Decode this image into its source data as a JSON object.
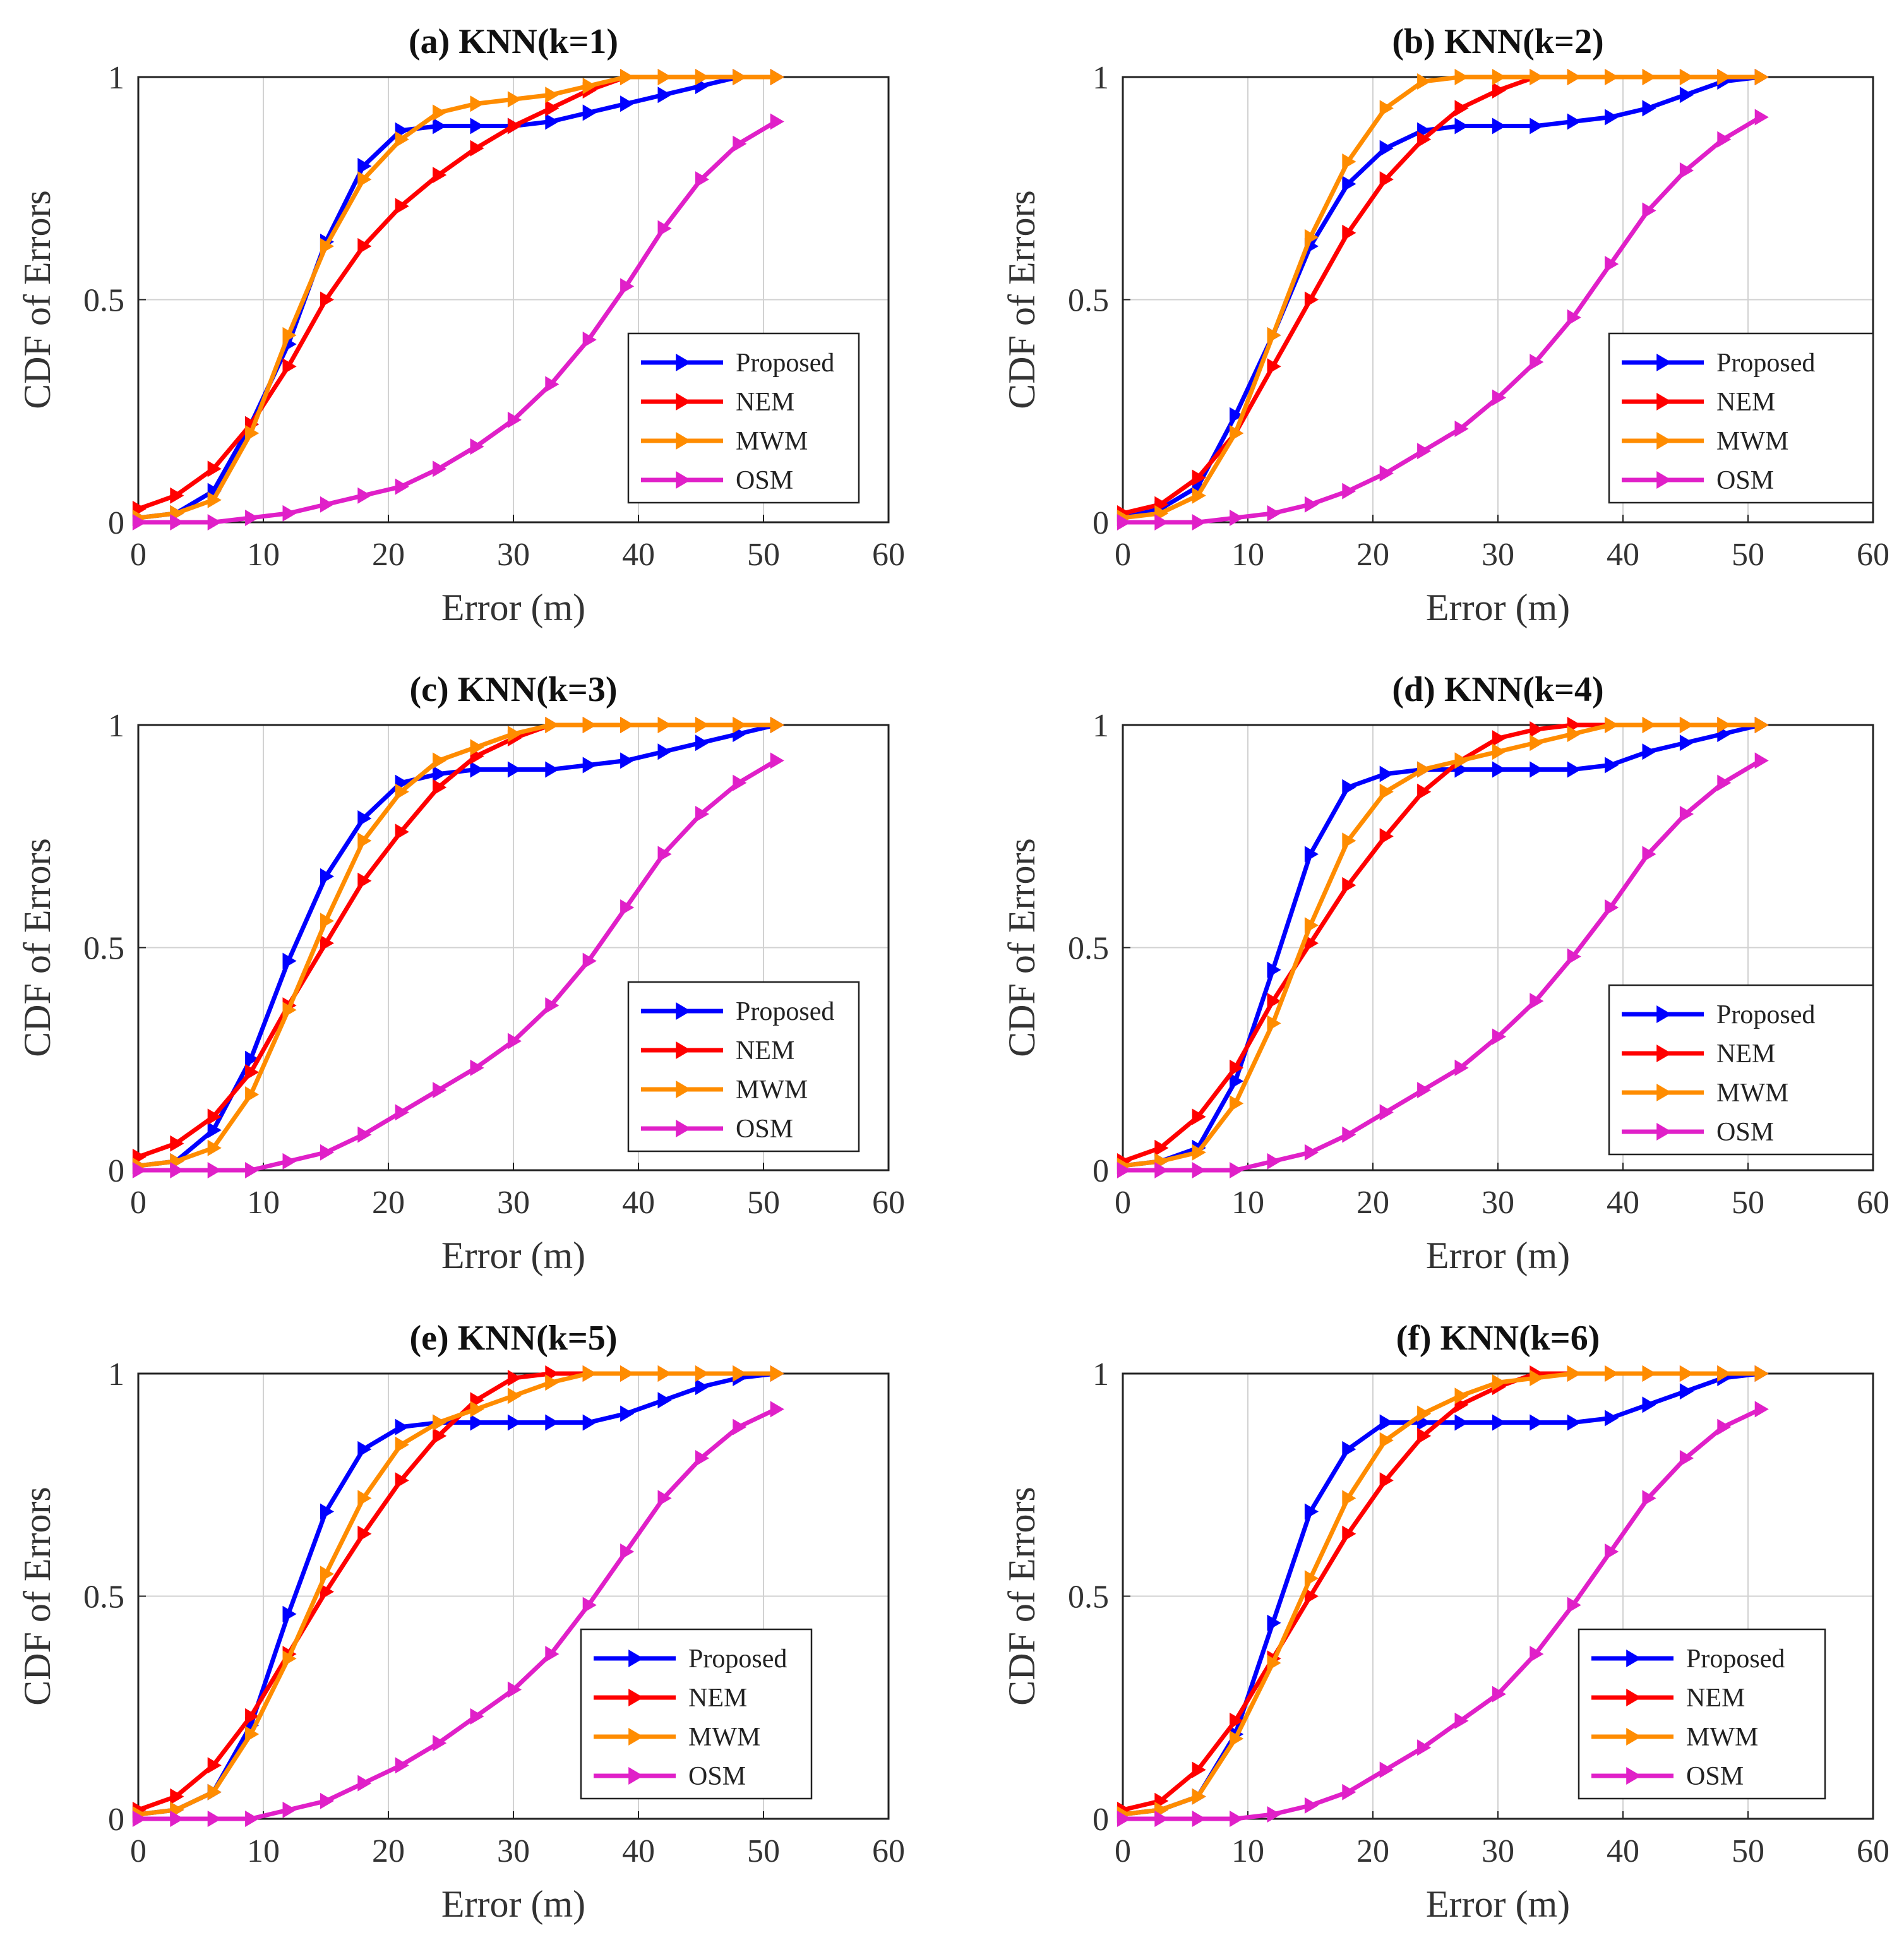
{
  "chart_data": [
    {
      "type": "line",
      "title": "(a) KNN(k=1)",
      "xlabel": "Error (m)",
      "ylabel": "CDF of Errors",
      "xlim": [
        0,
        60
      ],
      "ylim": [
        0,
        1
      ],
      "xticks": [
        "0",
        "10",
        "20",
        "30",
        "40",
        "50",
        "60"
      ],
      "yticks": [
        "0",
        "0.5",
        "1"
      ],
      "grid": true,
      "legend_position": "lower-right",
      "x": [
        0,
        3,
        6,
        9,
        12,
        15,
        18,
        21,
        24,
        27,
        30,
        33,
        36,
        39,
        42,
        45,
        48,
        51
      ],
      "series": [
        {
          "name": "Proposed",
          "color": "#0000ff",
          "values": [
            0.01,
            0.02,
            0.07,
            0.22,
            0.4,
            0.63,
            0.8,
            0.88,
            0.89,
            0.89,
            0.89,
            0.9,
            0.92,
            0.94,
            0.96,
            0.98,
            1.0,
            1.0
          ]
        },
        {
          "name": "NEM",
          "color": "#ff0000",
          "values": [
            0.03,
            0.06,
            0.12,
            0.22,
            0.35,
            0.5,
            0.62,
            0.71,
            0.78,
            0.84,
            0.89,
            0.93,
            0.97,
            1.0,
            1.0,
            1.0,
            1.0,
            1.0
          ]
        },
        {
          "name": "MWM",
          "color": "#ff8c00",
          "values": [
            0.01,
            0.02,
            0.05,
            0.2,
            0.42,
            0.62,
            0.77,
            0.86,
            0.92,
            0.94,
            0.95,
            0.96,
            0.98,
            1.0,
            1.0,
            1.0,
            1.0,
            1.0
          ]
        },
        {
          "name": "OSM",
          "color": "#e020c8",
          "values": [
            0.0,
            0.0,
            0.0,
            0.01,
            0.02,
            0.04,
            0.06,
            0.08,
            0.12,
            0.17,
            0.23,
            0.31,
            0.41,
            0.53,
            0.66,
            0.77,
            0.85,
            0.9
          ]
        }
      ]
    },
    {
      "type": "line",
      "title": "(b) KNN(k=2)",
      "xlabel": "Error (m)",
      "ylabel": "CDF of Errors",
      "xlim": [
        0,
        60
      ],
      "ylim": [
        0,
        1
      ],
      "xticks": [
        "0",
        "10",
        "20",
        "30",
        "40",
        "50",
        "60"
      ],
      "yticks": [
        "0",
        "0.5",
        "1"
      ],
      "grid": true,
      "legend_position": "lower-right",
      "x": [
        0,
        3,
        6,
        9,
        12,
        15,
        18,
        21,
        24,
        27,
        30,
        33,
        36,
        39,
        42,
        45,
        48,
        51
      ],
      "series": [
        {
          "name": "Proposed",
          "color": "#0000ff",
          "values": [
            0.01,
            0.03,
            0.08,
            0.24,
            0.42,
            0.62,
            0.76,
            0.84,
            0.88,
            0.89,
            0.89,
            0.89,
            0.9,
            0.91,
            0.93,
            0.96,
            0.99,
            1.0
          ]
        },
        {
          "name": "NEM",
          "color": "#ff0000",
          "values": [
            0.02,
            0.04,
            0.1,
            0.2,
            0.35,
            0.5,
            0.65,
            0.77,
            0.86,
            0.93,
            0.97,
            1.0,
            1.0,
            1.0,
            1.0,
            1.0,
            1.0,
            1.0
          ]
        },
        {
          "name": "MWM",
          "color": "#ff8c00",
          "values": [
            0.01,
            0.02,
            0.06,
            0.2,
            0.42,
            0.64,
            0.81,
            0.93,
            0.99,
            1.0,
            1.0,
            1.0,
            1.0,
            1.0,
            1.0,
            1.0,
            1.0,
            1.0
          ]
        },
        {
          "name": "OSM",
          "color": "#e020c8",
          "values": [
            0.0,
            0.0,
            0.0,
            0.01,
            0.02,
            0.04,
            0.07,
            0.11,
            0.16,
            0.21,
            0.28,
            0.36,
            0.46,
            0.58,
            0.7,
            0.79,
            0.86,
            0.91
          ]
        }
      ]
    },
    {
      "type": "line",
      "title": "(c) KNN(k=3)",
      "xlabel": "Error (m)",
      "ylabel": "CDF of Errors",
      "xlim": [
        0,
        60
      ],
      "ylim": [
        0,
        1
      ],
      "xticks": [
        "0",
        "10",
        "20",
        "30",
        "40",
        "50",
        "60"
      ],
      "yticks": [
        "0",
        "0.5",
        "1"
      ],
      "grid": true,
      "legend_position": "lower-right",
      "x": [
        0,
        3,
        6,
        9,
        12,
        15,
        18,
        21,
        24,
        27,
        30,
        33,
        36,
        39,
        42,
        45,
        48,
        51
      ],
      "series": [
        {
          "name": "Proposed",
          "color": "#0000ff",
          "values": [
            0.01,
            0.02,
            0.09,
            0.25,
            0.47,
            0.66,
            0.79,
            0.87,
            0.89,
            0.9,
            0.9,
            0.9,
            0.91,
            0.92,
            0.94,
            0.96,
            0.98,
            1.0
          ]
        },
        {
          "name": "NEM",
          "color": "#ff0000",
          "values": [
            0.03,
            0.06,
            0.12,
            0.22,
            0.37,
            0.51,
            0.65,
            0.76,
            0.86,
            0.93,
            0.97,
            1.0,
            1.0,
            1.0,
            1.0,
            1.0,
            1.0,
            1.0
          ]
        },
        {
          "name": "MWM",
          "color": "#ff8c00",
          "values": [
            0.01,
            0.02,
            0.05,
            0.17,
            0.36,
            0.56,
            0.74,
            0.85,
            0.92,
            0.95,
            0.98,
            1.0,
            1.0,
            1.0,
            1.0,
            1.0,
            1.0,
            1.0
          ]
        },
        {
          "name": "OSM",
          "color": "#e020c8",
          "values": [
            0.0,
            0.0,
            0.0,
            0.0,
            0.02,
            0.04,
            0.08,
            0.13,
            0.18,
            0.23,
            0.29,
            0.37,
            0.47,
            0.59,
            0.71,
            0.8,
            0.87,
            0.92
          ]
        }
      ]
    },
    {
      "type": "line",
      "title": "(d) KNN(k=4)",
      "xlabel": "Error (m)",
      "ylabel": "CDF of Errors",
      "xlim": [
        0,
        60
      ],
      "ylim": [
        0,
        1
      ],
      "xticks": [
        "0",
        "10",
        "20",
        "30",
        "40",
        "50",
        "60"
      ],
      "yticks": [
        "0",
        "0.5",
        "1"
      ],
      "grid": true,
      "legend_position": "lower-right",
      "x": [
        0,
        3,
        6,
        9,
        12,
        15,
        18,
        21,
        24,
        27,
        30,
        33,
        36,
        39,
        42,
        45,
        48,
        51
      ],
      "series": [
        {
          "name": "Proposed",
          "color": "#0000ff",
          "values": [
            0.01,
            0.02,
            0.05,
            0.2,
            0.45,
            0.71,
            0.86,
            0.89,
            0.9,
            0.9,
            0.9,
            0.9,
            0.9,
            0.91,
            0.94,
            0.96,
            0.98,
            1.0
          ]
        },
        {
          "name": "NEM",
          "color": "#ff0000",
          "values": [
            0.02,
            0.05,
            0.12,
            0.23,
            0.38,
            0.51,
            0.64,
            0.75,
            0.85,
            0.92,
            0.97,
            0.99,
            1.0,
            1.0,
            1.0,
            1.0,
            1.0,
            1.0
          ]
        },
        {
          "name": "MWM",
          "color": "#ff8c00",
          "values": [
            0.01,
            0.02,
            0.04,
            0.15,
            0.33,
            0.55,
            0.74,
            0.85,
            0.9,
            0.92,
            0.94,
            0.96,
            0.98,
            1.0,
            1.0,
            1.0,
            1.0,
            1.0
          ]
        },
        {
          "name": "OSM",
          "color": "#e020c8",
          "values": [
            0.0,
            0.0,
            0.0,
            0.0,
            0.02,
            0.04,
            0.08,
            0.13,
            0.18,
            0.23,
            0.3,
            0.38,
            0.48,
            0.59,
            0.71,
            0.8,
            0.87,
            0.92
          ]
        }
      ]
    },
    {
      "type": "line",
      "title": "(e) KNN(k=5)",
      "xlabel": "Error (m)",
      "ylabel": "CDF of Errors",
      "xlim": [
        0,
        60
      ],
      "ylim": [
        0,
        1
      ],
      "xticks": [
        "0",
        "10",
        "20",
        "30",
        "40",
        "50",
        "60"
      ],
      "yticks": [
        "0",
        "0.5",
        "1"
      ],
      "grid": true,
      "legend_position": "lower-right",
      "x": [
        0,
        3,
        6,
        9,
        12,
        15,
        18,
        21,
        24,
        27,
        30,
        33,
        36,
        39,
        42,
        45,
        48,
        51
      ],
      "series": [
        {
          "name": "Proposed",
          "color": "#0000ff",
          "values": [
            0.01,
            0.02,
            0.06,
            0.21,
            0.46,
            0.69,
            0.83,
            0.88,
            0.89,
            0.89,
            0.89,
            0.89,
            0.89,
            0.91,
            0.94,
            0.97,
            0.99,
            1.0
          ]
        },
        {
          "name": "NEM",
          "color": "#ff0000",
          "values": [
            0.02,
            0.05,
            0.12,
            0.23,
            0.37,
            0.51,
            0.64,
            0.76,
            0.86,
            0.94,
            0.99,
            1.0,
            1.0,
            1.0,
            1.0,
            1.0,
            1.0,
            1.0
          ]
        },
        {
          "name": "MWM",
          "color": "#ff8c00",
          "values": [
            0.01,
            0.02,
            0.06,
            0.19,
            0.36,
            0.55,
            0.72,
            0.84,
            0.89,
            0.92,
            0.95,
            0.98,
            1.0,
            1.0,
            1.0,
            1.0,
            1.0,
            1.0
          ]
        },
        {
          "name": "OSM",
          "color": "#e020c8",
          "values": [
            0.0,
            0.0,
            0.0,
            0.0,
            0.02,
            0.04,
            0.08,
            0.12,
            0.17,
            0.23,
            0.29,
            0.37,
            0.48,
            0.6,
            0.72,
            0.81,
            0.88,
            0.92
          ]
        }
      ]
    },
    {
      "type": "line",
      "title": "(f) KNN(k=6)",
      "xlabel": "Error (m)",
      "ylabel": "CDF of Errors",
      "xlim": [
        0,
        60
      ],
      "ylim": [
        0,
        1
      ],
      "xticks": [
        "0",
        "10",
        "20",
        "30",
        "40",
        "50",
        "60"
      ],
      "yticks": [
        "0",
        "0.5",
        "1"
      ],
      "grid": true,
      "legend_position": "lower-right",
      "x": [
        0,
        3,
        6,
        9,
        12,
        15,
        18,
        21,
        24,
        27,
        30,
        33,
        36,
        39,
        42,
        45,
        48,
        51
      ],
      "series": [
        {
          "name": "Proposed",
          "color": "#0000ff",
          "values": [
            0.01,
            0.02,
            0.05,
            0.19,
            0.44,
            0.69,
            0.83,
            0.89,
            0.89,
            0.89,
            0.89,
            0.89,
            0.89,
            0.9,
            0.93,
            0.96,
            0.99,
            1.0
          ]
        },
        {
          "name": "NEM",
          "color": "#ff0000",
          "values": [
            0.02,
            0.04,
            0.11,
            0.22,
            0.36,
            0.5,
            0.64,
            0.76,
            0.86,
            0.93,
            0.97,
            1.0,
            1.0,
            1.0,
            1.0,
            1.0,
            1.0,
            1.0
          ]
        },
        {
          "name": "MWM",
          "color": "#ff8c00",
          "values": [
            0.01,
            0.02,
            0.05,
            0.18,
            0.35,
            0.54,
            0.72,
            0.85,
            0.91,
            0.95,
            0.98,
            0.99,
            1.0,
            1.0,
            1.0,
            1.0,
            1.0,
            1.0
          ]
        },
        {
          "name": "OSM",
          "color": "#e020c8",
          "values": [
            0.0,
            0.0,
            0.0,
            0.0,
            0.01,
            0.03,
            0.06,
            0.11,
            0.16,
            0.22,
            0.28,
            0.37,
            0.48,
            0.6,
            0.72,
            0.81,
            0.88,
            0.92
          ]
        }
      ]
    }
  ]
}
